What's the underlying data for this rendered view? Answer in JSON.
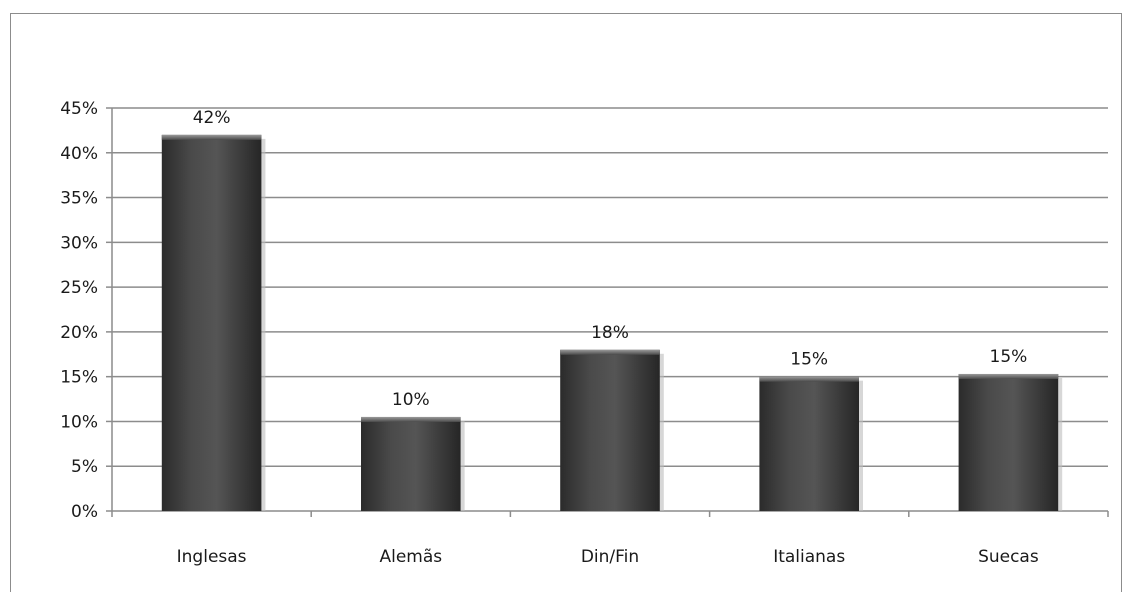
{
  "chart_data": {
    "type": "bar",
    "categories": [
      "Inglesas",
      "Alemãs",
      "Din/Fin",
      "Italianas",
      "Suecas"
    ],
    "values": [
      0.42,
      0.105,
      0.18,
      0.15,
      0.153
    ],
    "data_labels": [
      "42%",
      "10%",
      "18%",
      "15%",
      "15%"
    ],
    "y_ticks": [
      0,
      0.05,
      0.1,
      0.15,
      0.2,
      0.25,
      0.3,
      0.35,
      0.4,
      0.45
    ],
    "y_tick_labels": [
      "0%",
      "5%",
      "10%",
      "15%",
      "20%",
      "25%",
      "30%",
      "35%",
      "40%",
      "45%"
    ],
    "ylim": [
      0,
      0.45
    ],
    "title": "",
    "xlabel": "",
    "ylabel": "",
    "grid": true,
    "legend": "none",
    "colors": {
      "bar": "#3f3f3f",
      "bar_highlight": "#6b6b6b",
      "bar_shadow": "#1e1e1e",
      "grid": "#8c8c8c",
      "axis": "#8c8c8c",
      "text": "#1a1a1a"
    }
  }
}
